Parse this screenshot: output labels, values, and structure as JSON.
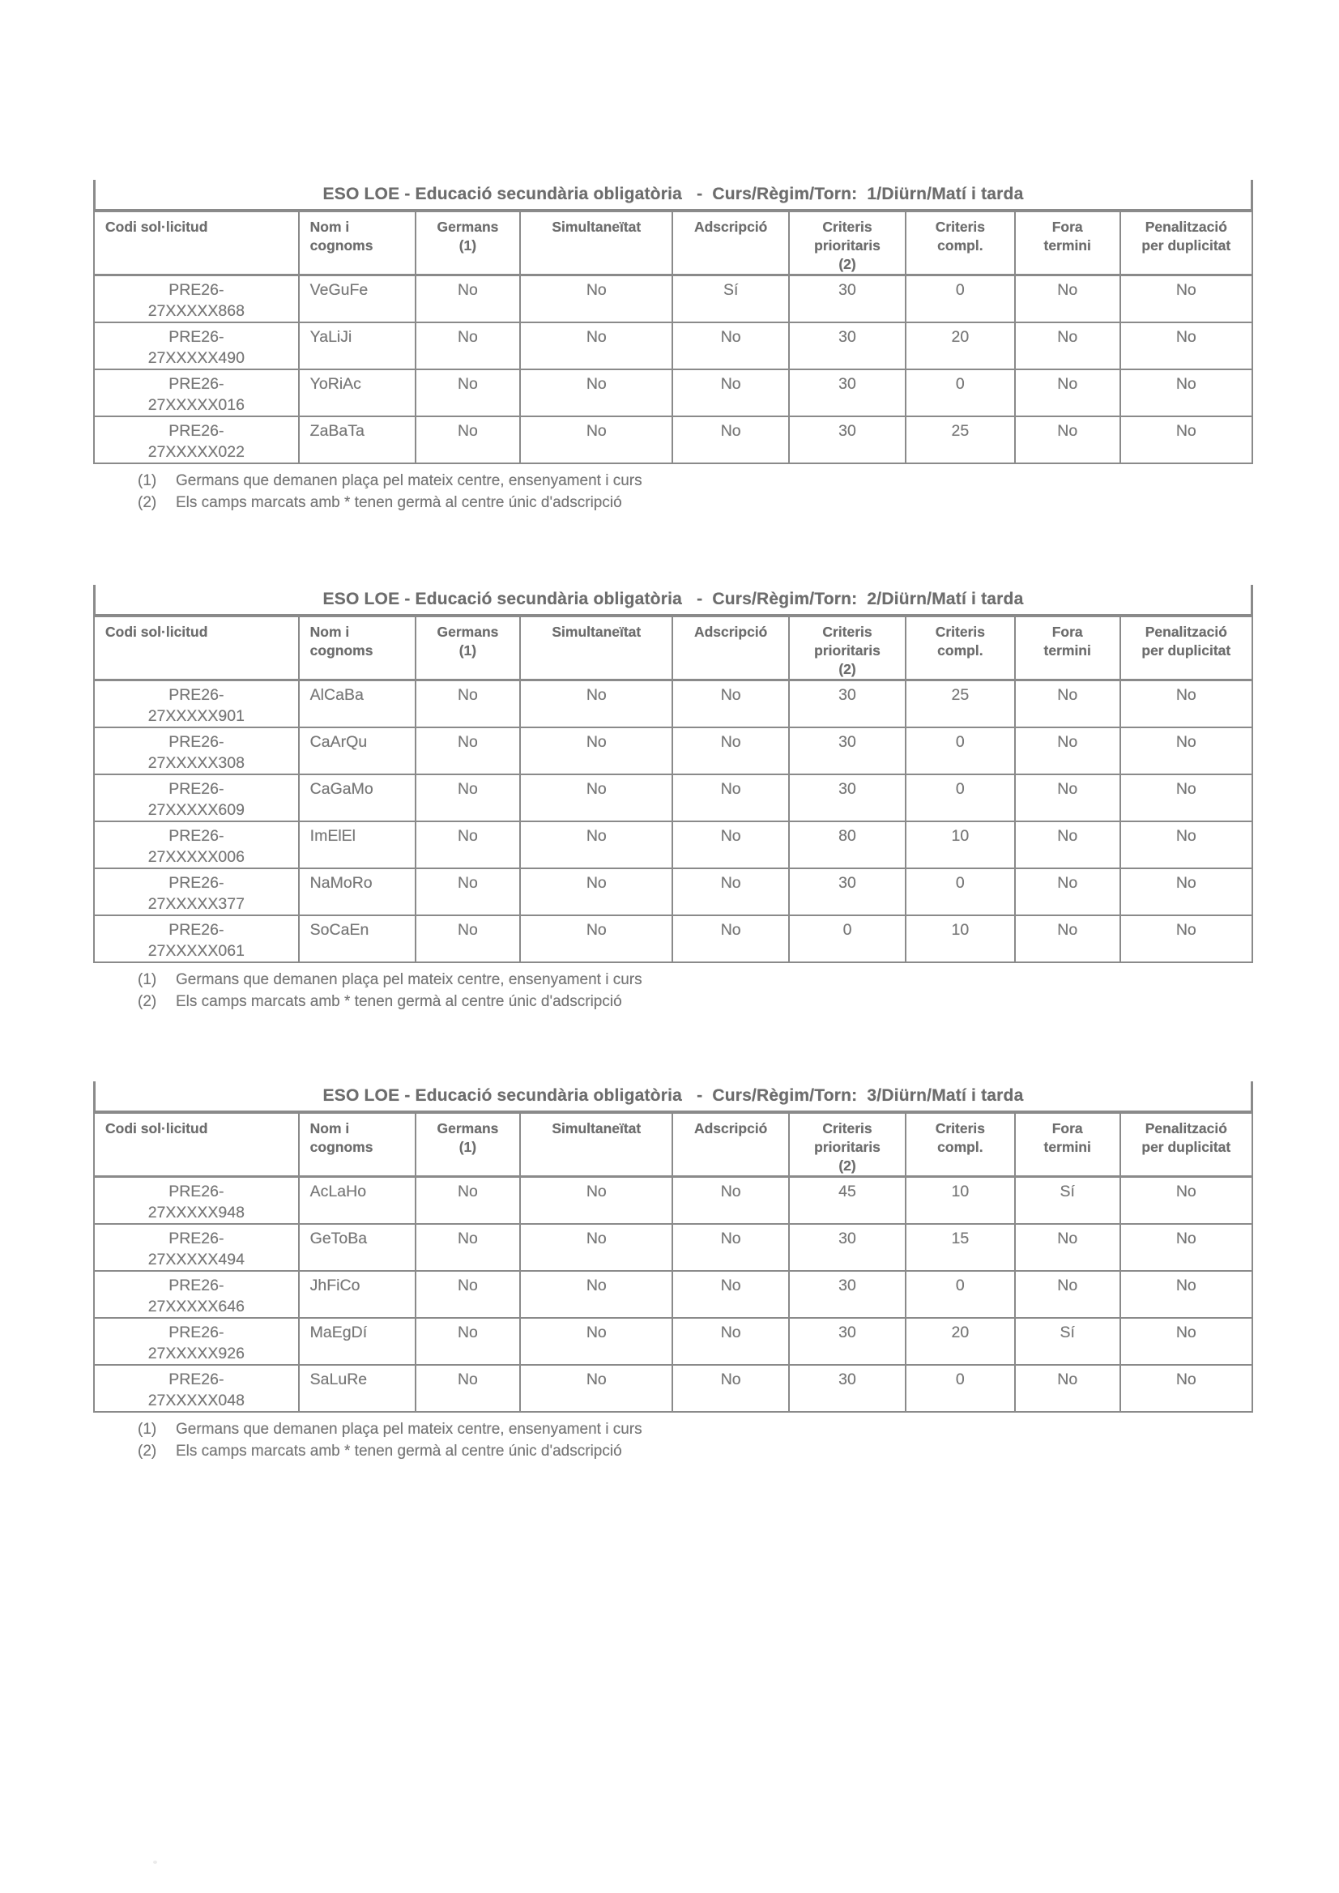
{
  "document": {
    "background": "#ffffff",
    "text_color": "#787878",
    "heading_color": "#6d6d6d",
    "border_color": "#8a8a8a"
  },
  "columns": [
    {
      "label": "Codi sol·licitud",
      "align": "left"
    },
    {
      "label": "Nom i\ncognoms",
      "align": "left"
    },
    {
      "label": "Germans\n(1)",
      "align": "center"
    },
    {
      "label": "Simultaneïtat",
      "align": "center"
    },
    {
      "label": "Adscripció",
      "align": "center"
    },
    {
      "label": "Criteris\nprioritaris\n(2)",
      "align": "center"
    },
    {
      "label": "Criteris\ncompl.",
      "align": "center"
    },
    {
      "label": "Fora\ntermini",
      "align": "center"
    },
    {
      "label": "Penalització\nper duplicitat",
      "align": "center"
    }
  ],
  "footnotes": [
    {
      "marker": "(1)",
      "text": "Germans que demanen plaça pel mateix centre, ensenyament i curs"
    },
    {
      "marker": "(2)",
      "text": "Els camps marcats amb * tenen germà al centre únic d'adscripció"
    }
  ],
  "tables": [
    {
      "title": "ESO LOE - Educació secundària obligatòria   -  Curs/Règim/Torn:  1/Diürn/Matí i tarda",
      "rows": [
        [
          "PRE26-\n27XXXXX868",
          "VeGuFe",
          "No",
          "No",
          "Sí",
          "30",
          "0",
          "No",
          "No"
        ],
        [
          "PRE26-\n27XXXXX490",
          "YaLiJi",
          "No",
          "No",
          "No",
          "30",
          "20",
          "No",
          "No"
        ],
        [
          "PRE26-\n27XXXXX016",
          "YoRiAc",
          "No",
          "No",
          "No",
          "30",
          "0",
          "No",
          "No"
        ],
        [
          "PRE26-\n27XXXXX022",
          "ZaBaTa",
          "No",
          "No",
          "No",
          "30",
          "25",
          "No",
          "No"
        ]
      ]
    },
    {
      "title": "ESO LOE - Educació secundària obligatòria   -  Curs/Règim/Torn:  2/Diürn/Matí i tarda",
      "rows": [
        [
          "PRE26-\n27XXXXX901",
          "AlCaBa",
          "No",
          "No",
          "No",
          "30",
          "25",
          "No",
          "No"
        ],
        [
          "PRE26-\n27XXXXX308",
          "CaArQu",
          "No",
          "No",
          "No",
          "30",
          "0",
          "No",
          "No"
        ],
        [
          "PRE26-\n27XXXXX609",
          "CaGaMo",
          "No",
          "No",
          "No",
          "30",
          "0",
          "No",
          "No"
        ],
        [
          "PRE26-\n27XXXXX006",
          "ImElEl",
          "No",
          "No",
          "No",
          "80",
          "10",
          "No",
          "No"
        ],
        [
          "PRE26-\n27XXXXX377",
          "NaMoRo",
          "No",
          "No",
          "No",
          "30",
          "0",
          "No",
          "No"
        ],
        [
          "PRE26-\n27XXXXX061",
          "SoCaEn",
          "No",
          "No",
          "No",
          "0",
          "10",
          "No",
          "No"
        ]
      ]
    },
    {
      "title": "ESO LOE - Educació secundària obligatòria   -  Curs/Règim/Torn:  3/Diürn/Matí i tarda",
      "rows": [
        [
          "PRE26-\n27XXXXX948",
          "AcLaHo",
          "No",
          "No",
          "No",
          "45",
          "10",
          "Sí",
          "No"
        ],
        [
          "PRE26-\n27XXXXX494",
          "GeToBa",
          "No",
          "No",
          "No",
          "30",
          "15",
          "No",
          "No"
        ],
        [
          "PRE26-\n27XXXXX646",
          "JhFiCo",
          "No",
          "No",
          "No",
          "30",
          "0",
          "No",
          "No"
        ],
        [
          "PRE26-\n27XXXXX926",
          "MaEgDí",
          "No",
          "No",
          "No",
          "30",
          "20",
          "Sí",
          "No"
        ],
        [
          "PRE26-\n27XXXXX048",
          "SaLuRe",
          "No",
          "No",
          "No",
          "30",
          "0",
          "No",
          "No"
        ]
      ]
    }
  ]
}
